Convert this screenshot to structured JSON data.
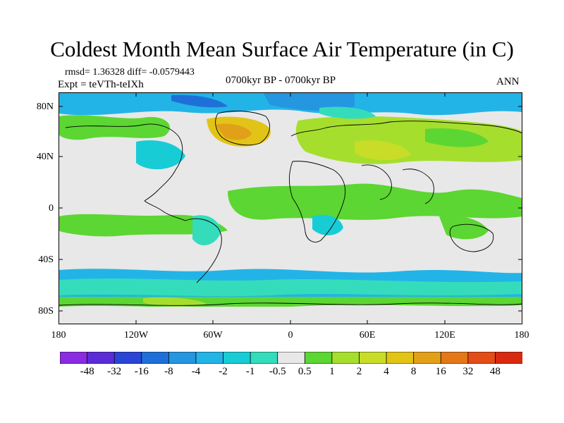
{
  "title": "Coldest Month Mean Surface Air Temperature (in C)",
  "stats": "rmsd= 1.36328 diff= -0.0579443",
  "expt": "Expt = teVTh-teIXh",
  "period": "0700kyr BP - 0700kyr BP",
  "season": "ANN",
  "map": {
    "lat_ticks": [
      "80N",
      "40N",
      "0",
      "40S",
      "80S"
    ],
    "lon_ticks": [
      "180",
      "120W",
      "60W",
      "0",
      "60E",
      "120E",
      "180"
    ]
  },
  "colorbar": {
    "labels": [
      "-48",
      "-32",
      "-16",
      "-8",
      "-4",
      "-2",
      "-1",
      "-0.5",
      "0.5",
      "1",
      "2",
      "4",
      "8",
      "16",
      "32",
      "48"
    ],
    "colors": [
      "#8a2be2",
      "#5b2bd8",
      "#2a45d6",
      "#1e70d8",
      "#2596e0",
      "#22b4e6",
      "#18ccd6",
      "#34dcbc",
      "#e8e8e8",
      "#5cd632",
      "#a6de2e",
      "#c8dc28",
      "#e2c418",
      "#e2a018",
      "#e47818",
      "#e44c18",
      "#d82a10"
    ]
  }
}
